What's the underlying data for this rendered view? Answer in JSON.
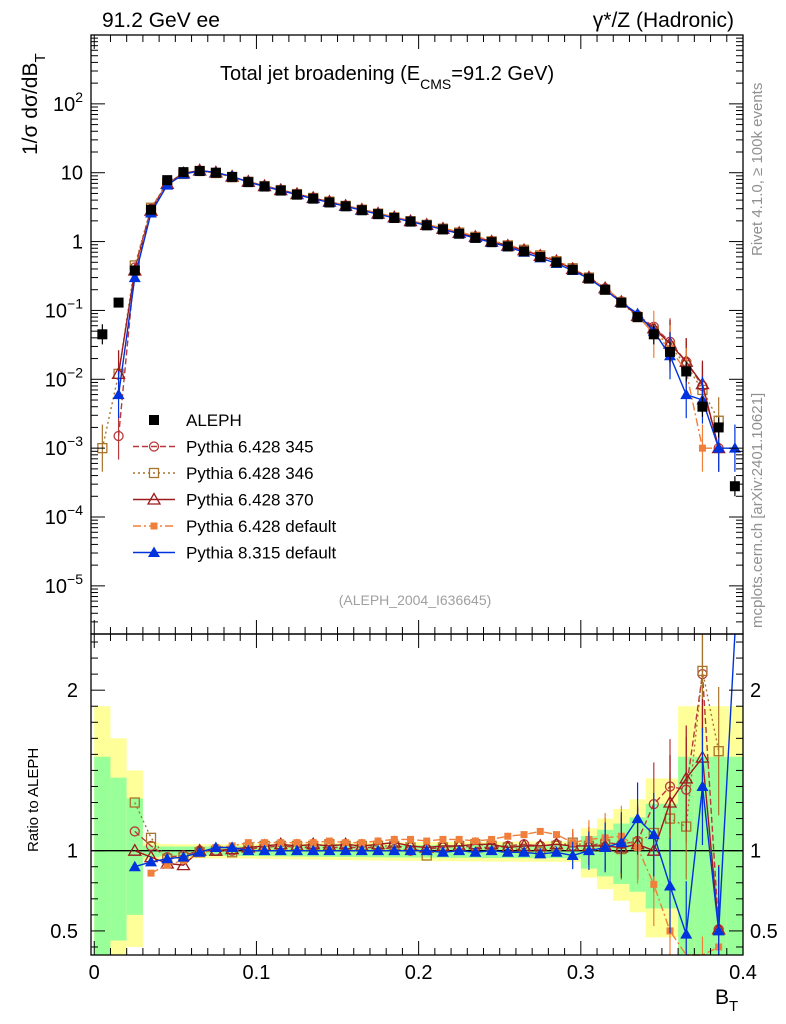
{
  "header": {
    "left": "91.2 GeV ee",
    "right": "γ*/Z (Hadronic)"
  },
  "side": {
    "rivet": "Rivet 4.1.0, ≥ 100k events",
    "mcplots": "mcplots.cern.ch [arXiv:2401.10621]"
  },
  "chart_data": {
    "type": "scatter",
    "title_main": "Total jet broadening (E",
    "title_sub": "CMS",
    "title_end": "=91.2 GeV)",
    "ylabel_main": "1/σ  dσ/dB",
    "ylabel_sub": "T",
    "ratio_ylabel": "Ratio to ALEPH",
    "xlabel_main": "B",
    "xlabel_sub": "T",
    "analysis_tag": "(ALEPH_2004_I636645)",
    "xlim": [
      -0.002,
      0.4
    ],
    "ylim_log": [
      2e-06,
      1000
    ],
    "ratio_ylim": [
      0.35,
      2.35
    ],
    "x_ticks": [
      "0",
      "0.1",
      "0.2",
      "0.3",
      "0.4"
    ],
    "x_tick_values": [
      0,
      0.1,
      0.2,
      0.3,
      0.4
    ],
    "y_ticks": [
      {
        "v": 100,
        "base": "10",
        "exp": "2"
      },
      {
        "v": 10,
        "base": "10",
        "exp": ""
      },
      {
        "v": 1,
        "base": "1",
        "exp": ""
      },
      {
        "v": 0.1,
        "base": "10",
        "exp": "−1"
      },
      {
        "v": 0.01,
        "base": "10",
        "exp": "−2"
      },
      {
        "v": 0.001,
        "base": "10",
        "exp": "−3"
      },
      {
        "v": 0.0001,
        "base": "10",
        "exp": "−4"
      },
      {
        "v": 1e-05,
        "base": "10",
        "exp": "−5"
      }
    ],
    "ratio_ticks": [
      "0.5",
      "1",
      "2"
    ],
    "ratio_tick_values": [
      0.5,
      1,
      2
    ],
    "x": [
      0.005,
      0.015,
      0.025,
      0.035,
      0.045,
      0.055,
      0.065,
      0.075,
      0.085,
      0.095,
      0.105,
      0.115,
      0.125,
      0.135,
      0.145,
      0.155,
      0.165,
      0.175,
      0.185,
      0.195,
      0.205,
      0.215,
      0.225,
      0.235,
      0.245,
      0.255,
      0.265,
      0.275,
      0.285,
      0.295,
      0.305,
      0.315,
      0.325,
      0.335,
      0.345,
      0.355,
      0.365,
      0.375,
      0.385,
      0.395
    ],
    "data_name": "ALEPH",
    "data": [
      0.045,
      0.13,
      0.38,
      2.9,
      7.8,
      10.2,
      10.6,
      10.0,
      8.7,
      7.3,
      6.3,
      5.5,
      4.8,
      4.2,
      3.7,
      3.25,
      2.85,
      2.5,
      2.2,
      1.95,
      1.72,
      1.5,
      1.3,
      1.13,
      0.98,
      0.85,
      0.72,
      0.6,
      0.5,
      0.39,
      0.29,
      0.2,
      0.13,
      0.08,
      0.045,
      0.025,
      0.013,
      0.004,
      0.002,
      0.00028
    ],
    "series": [
      {
        "name": "Pythia 6.428 345",
        "color": "#b8393c",
        "marker": "open-circle",
        "dash": "6,3",
        "values": [
          null,
          0.0015,
          0.42,
          3.0,
          7.0,
          9.7,
          10.6,
          9.9,
          8.7,
          7.4,
          6.4,
          5.6,
          4.9,
          4.25,
          3.75,
          3.3,
          2.9,
          2.55,
          2.22,
          1.96,
          1.74,
          1.53,
          1.34,
          1.16,
          1.0,
          0.87,
          0.75,
          0.62,
          0.52,
          0.4,
          0.3,
          0.21,
          0.135,
          0.085,
          0.058,
          0.035,
          0.018,
          0.008,
          0.001,
          null
        ],
        "ratio": [
          null,
          null,
          1.12,
          1.03,
          0.96,
          0.97,
          1.0,
          1.0,
          1.0,
          1.01,
          1.02,
          1.03,
          1.02,
          1.02,
          1.02,
          1.02,
          1.02,
          1.02,
          1.01,
          1.0,
          1.01,
          1.02,
          1.03,
          1.02,
          1.02,
          1.03,
          1.04,
          1.03,
          1.04,
          1.03,
          1.03,
          1.05,
          1.04,
          1.06,
          1.29,
          1.4,
          1.38,
          2.1,
          0.51,
          null
        ]
      },
      {
        "name": "Pythia 6.428 346",
        "color": "#a8742b",
        "marker": "open-square",
        "dash": "2,3",
        "values": [
          0.001,
          0.012,
          0.45,
          3.1,
          7.1,
          9.6,
          10.6,
          9.9,
          8.6,
          7.4,
          6.4,
          5.6,
          4.9,
          4.3,
          3.8,
          3.3,
          2.9,
          2.55,
          2.25,
          1.98,
          1.75,
          1.54,
          1.35,
          1.17,
          1.01,
          0.88,
          0.76,
          0.63,
          0.52,
          0.41,
          0.3,
          0.2,
          0.13,
          0.08,
          0.05,
          0.03,
          0.016,
          0.007,
          0.0025,
          null
        ],
        "ratio": [
          null,
          null,
          1.3,
          1.08,
          0.95,
          0.96,
          0.99,
          1.0,
          0.99,
          1.02,
          1.03,
          1.03,
          1.03,
          1.03,
          1.04,
          1.03,
          1.03,
          1.03,
          1.03,
          1.02,
          0.97,
          1.02,
          1.03,
          1.04,
          1.03,
          1.02,
          1.0,
          0.99,
          1.03,
          1.05,
          1.03,
          1.04,
          1.01,
          1.05,
          1.11,
          1.2,
          1.15,
          2.12,
          1.62,
          null
        ]
      },
      {
        "name": "Pythia 6.428 370",
        "color": "#9d1a1d",
        "marker": "open-triangle",
        "dash": "",
        "values": [
          null,
          0.012,
          0.38,
          2.8,
          6.9,
          9.8,
          10.8,
          10.1,
          8.8,
          7.4,
          6.4,
          5.6,
          4.9,
          4.3,
          3.8,
          3.3,
          2.9,
          2.55,
          2.25,
          1.98,
          1.75,
          1.54,
          1.34,
          1.17,
          1.0,
          0.87,
          0.75,
          0.62,
          0.52,
          0.4,
          0.3,
          0.21,
          0.133,
          0.083,
          0.055,
          0.033,
          0.018,
          0.0085,
          0.001,
          null
        ],
        "ratio": [
          null,
          null,
          1.0,
          0.96,
          0.92,
          0.91,
          1.0,
          1.0,
          1.01,
          1.02,
          1.03,
          1.04,
          1.03,
          1.04,
          1.03,
          1.04,
          1.03,
          1.04,
          1.05,
          1.03,
          1.02,
          1.03,
          1.03,
          1.04,
          1.04,
          1.02,
          1.03,
          1.03,
          1.04,
          1.03,
          1.03,
          1.03,
          1.02,
          1.04,
          1.0,
          1.3,
          1.45,
          1.58,
          0.51,
          null
        ]
      },
      {
        "name": "Pythia 6.428 default",
        "color": "#ef7f3a",
        "marker": "filled-square-small",
        "dash": "8,3,2,3",
        "values": [
          null,
          null,
          0.35,
          2.7,
          6.8,
          9.6,
          10.5,
          9.9,
          8.7,
          7.5,
          6.5,
          5.7,
          4.95,
          4.35,
          3.85,
          3.35,
          2.95,
          2.6,
          2.28,
          2.02,
          1.78,
          1.57,
          1.38,
          1.2,
          1.03,
          0.9,
          0.77,
          0.65,
          0.54,
          0.41,
          0.3,
          0.21,
          0.14,
          0.085,
          0.045,
          0.028,
          0.013,
          0.001,
          0.001,
          null
        ],
        "ratio": [
          null,
          null,
          null,
          0.86,
          0.91,
          0.94,
          0.98,
          1.02,
          1.03,
          1.05,
          1.05,
          1.05,
          1.05,
          1.05,
          1.06,
          1.05,
          1.05,
          1.06,
          1.07,
          1.07,
          1.06,
          1.07,
          1.07,
          1.06,
          1.07,
          1.09,
          1.1,
          1.12,
          1.1,
          1.05,
          1.07,
          1.08,
          1.09,
          1.02,
          0.79,
          0.5,
          0.22,
          0.1,
          0.4,
          null
        ]
      },
      {
        "name": "Pythia 8.315 default",
        "color": "#0033dd",
        "marker": "filled-triangle",
        "dash": "",
        "values": [
          null,
          0.006,
          0.3,
          2.6,
          6.6,
          9.5,
          10.7,
          10.1,
          8.8,
          7.3,
          6.3,
          5.5,
          4.8,
          4.2,
          3.7,
          3.25,
          2.85,
          2.5,
          2.2,
          1.95,
          1.72,
          1.5,
          1.3,
          1.12,
          0.97,
          0.84,
          0.7,
          0.58,
          0.48,
          0.38,
          0.29,
          0.2,
          0.13,
          0.09,
          0.05,
          0.022,
          0.006,
          0.005,
          0.001,
          0.001
        ],
        "ratio": [
          null,
          null,
          0.9,
          0.93,
          0.95,
          0.96,
          0.99,
          1.02,
          1.02,
          1.0,
          1.0,
          1.0,
          1.0,
          1.0,
          1.0,
          1.0,
          1.0,
          1.0,
          1.0,
          1.0,
          1.0,
          0.99,
          1.0,
          0.99,
          1.0,
          0.99,
          0.99,
          0.98,
          0.99,
          0.97,
          1.0,
          1.02,
          1.05,
          1.2,
          1.1,
          0.78,
          0.48,
          1.4,
          0.5,
          2.8
        ]
      }
    ]
  }
}
